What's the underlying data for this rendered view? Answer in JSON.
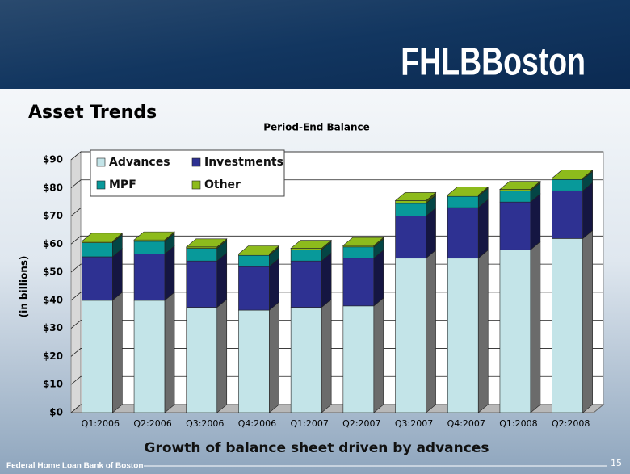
{
  "slide": {
    "logo": "FHLBBoston",
    "title": "Asset Trends",
    "caption": "Growth of balance sheet driven by advances",
    "footer": "Federal Home Loan Bank of Boston",
    "page": "15"
  },
  "chart_data": {
    "type": "stacked-bar-3d",
    "title": "Period-End Balance",
    "y_label": "(in billions)",
    "categories": [
      "Q1:2006",
      "Q2:2006",
      "Q3:2006",
      "Q4:2006",
      "Q1:2007",
      "Q2:2007",
      "Q3:2007",
      "Q4:2007",
      "Q1:2008",
      "Q2:2008"
    ],
    "series": [
      {
        "name": "Advances",
        "color": "#c3e4e8",
        "values": [
          40,
          40,
          37.5,
          36.5,
          37.5,
          38,
          55,
          55,
          58,
          62
        ]
      },
      {
        "name": "Investments",
        "color": "#2e3192",
        "values": [
          15.5,
          16.5,
          16.5,
          15.5,
          16.5,
          17,
          15,
          18,
          17,
          17
        ]
      },
      {
        "name": "MPF",
        "color": "#08999a",
        "values": [
          5,
          4.5,
          4.5,
          4,
          4,
          4,
          4.5,
          4,
          4,
          4
        ]
      },
      {
        "name": "Other",
        "color": "#8dbb1c",
        "values": [
          0.5,
          0.5,
          0.5,
          0.5,
          0.5,
          0.5,
          1,
          0.5,
          0.5,
          0.5
        ]
      }
    ],
    "ylim": [
      0,
      90
    ],
    "yticks": [
      {
        "value": 0,
        "label": "$0"
      },
      {
        "value": 10,
        "label": "$10"
      },
      {
        "value": 20,
        "label": "$20"
      },
      {
        "value": 30,
        "label": "$30"
      },
      {
        "value": 40,
        "label": "$40"
      },
      {
        "value": 50,
        "label": "$50"
      },
      {
        "value": 60,
        "label": "$60"
      },
      {
        "value": 70,
        "label": "$70"
      },
      {
        "value": 80,
        "label": "$80"
      },
      {
        "value": 90,
        "label": "$90"
      }
    ],
    "grid": true,
    "legend": "top-left"
  }
}
